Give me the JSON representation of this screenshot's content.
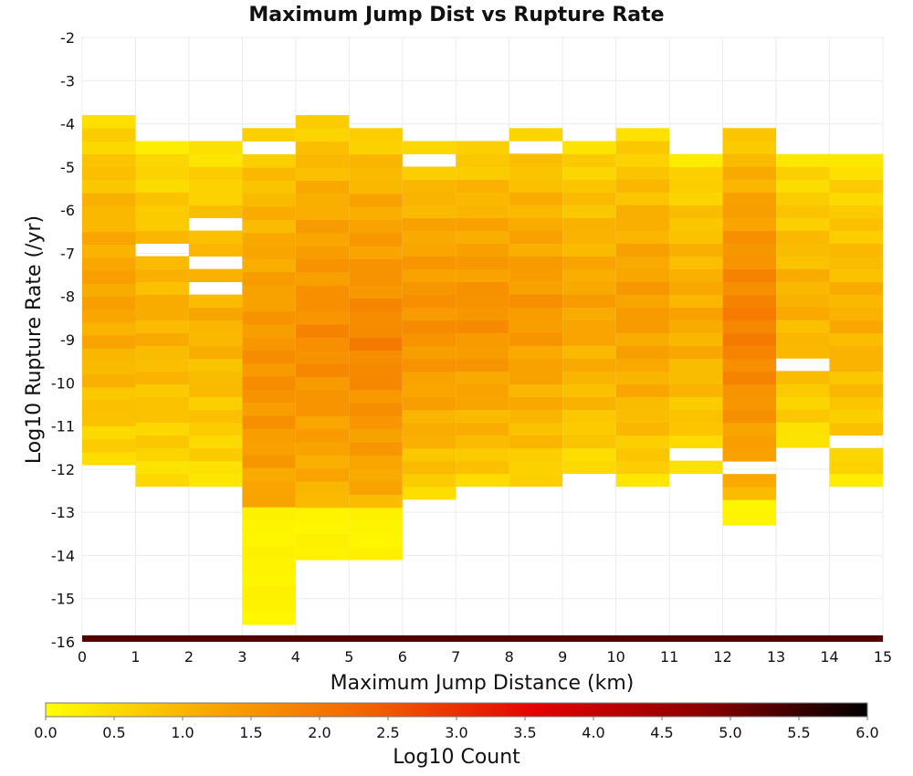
{
  "chart_data": {
    "type": "heatmap",
    "title": "Maximum Jump Dist vs Rupture Rate",
    "xlabel": "Maximum Jump Distance (km)",
    "ylabel": "Log10 Rupture Rate (/yr)",
    "xlim": [
      0,
      15
    ],
    "ylim": [
      -16,
      -2
    ],
    "x_ticks": [
      "0",
      "1",
      "2",
      "3",
      "4",
      "5",
      "6",
      "7",
      "8",
      "9",
      "10",
      "11",
      "12",
      "13",
      "14",
      "15"
    ],
    "y_ticks": [
      "-2",
      "-3",
      "-4",
      "-5",
      "-6",
      "-7",
      "-8",
      "-9",
      "-10",
      "-11",
      "-12",
      "-13",
      "-14",
      "-15",
      "-16"
    ],
    "bin_width_x": 1,
    "bin_height_y": 0.3,
    "grid": true,
    "colorbar": {
      "label": "Log10 Count",
      "min": 0.0,
      "max": 6.0,
      "ticks": [
        "0.0",
        "0.5",
        "1.0",
        "1.5",
        "2.0",
        "2.5",
        "3.0",
        "3.5",
        "4.0",
        "4.5",
        "5.0",
        "5.5",
        "6.0"
      ],
      "colors": [
        "#ffff00",
        "#f9a800",
        "#f26000",
        "#e30000",
        "#8c0000",
        "#000000"
      ]
    },
    "column_ranges": [
      {
        "x_bin": [
          0,
          1
        ],
        "log10_rate_range": [
          -11.9,
          -3.8
        ],
        "peak_log10_count": 1.3
      },
      {
        "x_bin": [
          1,
          2
        ],
        "log10_rate_range": [
          -12.4,
          -4.4
        ],
        "peak_log10_count": 1.1
      },
      {
        "x_bin": [
          2,
          3
        ],
        "log10_rate_range": [
          -12.4,
          -4.4
        ],
        "peak_log10_count": 1.1
      },
      {
        "x_bin": [
          3,
          4
        ],
        "log10_rate_range": [
          -15.6,
          -4.1
        ],
        "peak_log10_count": 1.6
      },
      {
        "x_bin": [
          4,
          5
        ],
        "log10_rate_range": [
          -14.1,
          -3.8
        ],
        "peak_log10_count": 1.7
      },
      {
        "x_bin": [
          5,
          6
        ],
        "log10_rate_range": [
          -14.1,
          -4.1
        ],
        "peak_log10_count": 1.8
      },
      {
        "x_bin": [
          6,
          7
        ],
        "log10_rate_range": [
          -12.7,
          -4.4
        ],
        "peak_log10_count": 1.6
      },
      {
        "x_bin": [
          7,
          8
        ],
        "log10_rate_range": [
          -12.4,
          -4.4
        ],
        "peak_log10_count": 1.6
      },
      {
        "x_bin": [
          8,
          9
        ],
        "log10_rate_range": [
          -12.4,
          -4.1
        ],
        "peak_log10_count": 1.5
      },
      {
        "x_bin": [
          9,
          10
        ],
        "log10_rate_range": [
          -12.1,
          -4.4
        ],
        "peak_log10_count": 1.3
      },
      {
        "x_bin": [
          10,
          11
        ],
        "log10_rate_range": [
          -12.4,
          -4.1
        ],
        "peak_log10_count": 1.4
      },
      {
        "x_bin": [
          11,
          12
        ],
        "log10_rate_range": [
          -12.1,
          -4.7
        ],
        "peak_log10_count": 1.2
      },
      {
        "x_bin": [
          12,
          13
        ],
        "log10_rate_range": [
          -13.3,
          -4.1
        ],
        "peak_log10_count": 1.9
      },
      {
        "x_bin": [
          13,
          14
        ],
        "log10_rate_range": [
          -11.5,
          -4.7
        ],
        "peak_log10_count": 1.1
      },
      {
        "x_bin": [
          14,
          15
        ],
        "log10_rate_range": [
          -12.4,
          -4.7
        ],
        "peak_log10_count": 1.1
      }
    ],
    "empty_cells": [
      {
        "x_bin": [
          3,
          4
        ],
        "log10_rate": -4.55
      },
      {
        "x_bin": [
          6,
          7
        ],
        "log10_rate": -4.85
      },
      {
        "x_bin": [
          8,
          9
        ],
        "log10_rate": -4.55
      },
      {
        "x_bin": [
          1,
          2
        ],
        "log10_rate": -6.85
      },
      {
        "x_bin": [
          2,
          3
        ],
        "log10_rate": -6.25
      },
      {
        "x_bin": [
          2,
          3
        ],
        "log10_rate": -7.15
      },
      {
        "x_bin": [
          2,
          3
        ],
        "log10_rate": -7.75
      },
      {
        "x_bin": [
          13,
          14
        ],
        "log10_rate": -9.55
      },
      {
        "x_bin": [
          12,
          13
        ],
        "log10_rate": -11.95
      },
      {
        "x_bin": [
          11,
          12
        ],
        "log10_rate": -11.65
      },
      {
        "x_bin": [
          14,
          15
        ],
        "log10_rate": -11.35
      }
    ],
    "bottom_band": {
      "log10_rate_range": [
        -16.0,
        -15.85
      ],
      "log10_count": 5.3
    }
  }
}
